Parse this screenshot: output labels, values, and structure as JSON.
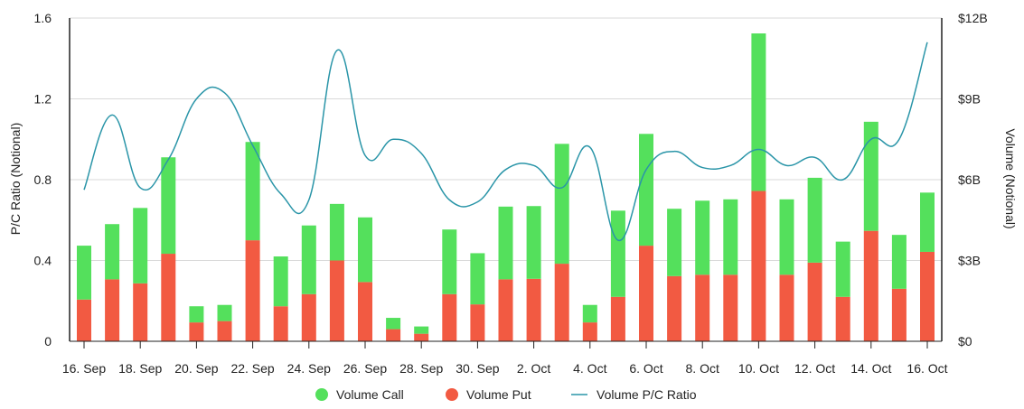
{
  "chart_data": {
    "type": "bar",
    "stacked": true,
    "dates": [
      "16. Sep",
      "17. Sep",
      "18. Sep",
      "19. Sep",
      "20. Sep",
      "21. Sep",
      "22. Sep",
      "23. Sep",
      "24. Sep",
      "25. Sep",
      "26. Sep",
      "27. Sep",
      "28. Sep",
      "29. Sep",
      "30. Sep",
      "1. Oct",
      "2. Oct",
      "3. Oct",
      "4. Oct",
      "5. Oct",
      "6. Oct",
      "7. Oct",
      "8. Oct",
      "9. Oct",
      "10. Oct",
      "11. Oct",
      "12. Oct",
      "13. Oct",
      "14. Oct",
      "15. Oct",
      "16. Oct"
    ],
    "x_tick_labels": [
      "16. Sep",
      "18. Sep",
      "20. Sep",
      "22. Sep",
      "24. Sep",
      "26. Sep",
      "28. Sep",
      "30. Sep",
      "2. Oct",
      "4. Oct",
      "6. Oct",
      "8. Oct",
      "10. Oct",
      "12. Oct",
      "14. Oct",
      "16. Oct"
    ],
    "series": [
      {
        "name": "Volume Call",
        "kind": "bar",
        "axis": "right",
        "color": "#54e05c",
        "values": [
          2.0,
          2.05,
          2.8,
          3.58,
          0.6,
          0.6,
          3.65,
          1.85,
          2.55,
          2.1,
          2.4,
          0.42,
          0.27,
          2.4,
          1.9,
          2.7,
          2.7,
          4.45,
          0.65,
          3.2,
          4.15,
          2.5,
          2.75,
          2.8,
          5.85,
          2.8,
          3.15,
          2.05,
          4.05,
          2.0,
          2.2
        ]
      },
      {
        "name": "Volume Put",
        "kind": "bar",
        "axis": "right",
        "color": "#f25a42",
        "values": [
          1.55,
          2.3,
          2.15,
          3.25,
          0.7,
          0.75,
          3.75,
          1.3,
          1.75,
          3.0,
          2.2,
          0.45,
          0.28,
          1.75,
          1.37,
          2.3,
          2.32,
          2.88,
          0.7,
          1.65,
          3.55,
          2.42,
          2.47,
          2.47,
          5.58,
          2.47,
          2.92,
          1.65,
          4.1,
          1.95,
          3.32
        ]
      },
      {
        "name": "Volume P/C Ratio",
        "kind": "line",
        "axis": "left",
        "color": "#2a95a8",
        "values": [
          0.75,
          1.12,
          0.76,
          0.9,
          1.2,
          1.23,
          0.97,
          0.73,
          0.7,
          1.44,
          0.92,
          1.0,
          0.93,
          0.7,
          0.69,
          0.85,
          0.87,
          0.76,
          0.96,
          0.5,
          0.85,
          0.94,
          0.86,
          0.87,
          0.95,
          0.87,
          0.91,
          0.8,
          1.0,
          1.0,
          1.48
        ]
      }
    ],
    "y_left": {
      "label": "P/C Ratio (Notional)",
      "min": 0,
      "max": 1.6,
      "ticks": [
        0,
        0.4,
        0.8,
        1.2,
        1.6
      ],
      "tick_labels": [
        "0",
        "0.4",
        "0.8",
        "1.2",
        "1.6"
      ]
    },
    "y_right": {
      "label": "Volume (Notional)",
      "min": 0,
      "max": 12,
      "unit": "B USD",
      "ticks": [
        0,
        3,
        6,
        9,
        12
      ],
      "tick_labels": [
        "$0",
        "$3B",
        "$6B",
        "$9B",
        "$12B"
      ]
    },
    "grid": true,
    "legend": {
      "position": "bottom-center",
      "items": [
        "Volume Call",
        "Volume Put",
        "Volume P/C Ratio"
      ]
    }
  }
}
